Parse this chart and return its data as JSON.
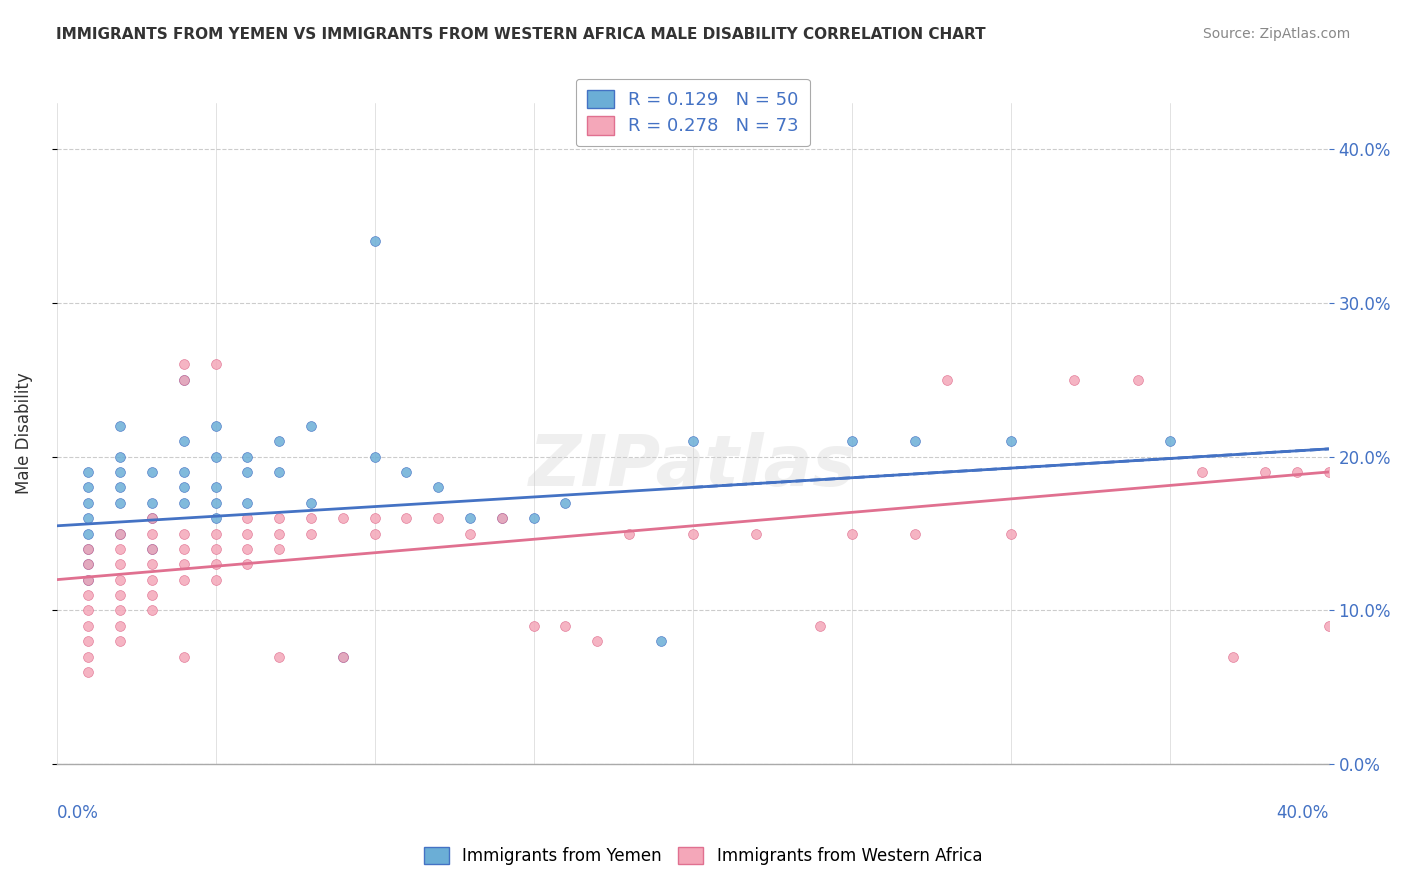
{
  "title": "IMMIGRANTS FROM YEMEN VS IMMIGRANTS FROM WESTERN AFRICA MALE DISABILITY CORRELATION CHART",
  "source": "Source: ZipAtlas.com",
  "ylabel": "Male Disability",
  "legend_r1": "R = 0.129   N = 50",
  "legend_r2": "R = 0.278   N = 73",
  "color_yemen": "#6baed6",
  "color_west_africa": "#f4a7b9",
  "color_yemen_line": "#4472c4",
  "color_west_africa_line": "#e07090",
  "xlim": [
    0.0,
    0.4
  ],
  "ylim": [
    0.0,
    0.43
  ],
  "yemen_scatter": [
    [
      0.01,
      0.19
    ],
    [
      0.01,
      0.18
    ],
    [
      0.01,
      0.17
    ],
    [
      0.01,
      0.16
    ],
    [
      0.01,
      0.15
    ],
    [
      0.01,
      0.14
    ],
    [
      0.01,
      0.13
    ],
    [
      0.01,
      0.12
    ],
    [
      0.02,
      0.2
    ],
    [
      0.02,
      0.19
    ],
    [
      0.02,
      0.18
    ],
    [
      0.02,
      0.17
    ],
    [
      0.02,
      0.15
    ],
    [
      0.02,
      0.22
    ],
    [
      0.03,
      0.19
    ],
    [
      0.03,
      0.17
    ],
    [
      0.03,
      0.16
    ],
    [
      0.03,
      0.14
    ],
    [
      0.04,
      0.25
    ],
    [
      0.04,
      0.21
    ],
    [
      0.04,
      0.19
    ],
    [
      0.04,
      0.18
    ],
    [
      0.04,
      0.17
    ],
    [
      0.05,
      0.22
    ],
    [
      0.05,
      0.2
    ],
    [
      0.05,
      0.18
    ],
    [
      0.05,
      0.17
    ],
    [
      0.05,
      0.16
    ],
    [
      0.06,
      0.2
    ],
    [
      0.06,
      0.19
    ],
    [
      0.06,
      0.17
    ],
    [
      0.07,
      0.21
    ],
    [
      0.07,
      0.19
    ],
    [
      0.08,
      0.22
    ],
    [
      0.08,
      0.17
    ],
    [
      0.09,
      0.07
    ],
    [
      0.1,
      0.34
    ],
    [
      0.1,
      0.2
    ],
    [
      0.11,
      0.19
    ],
    [
      0.12,
      0.18
    ],
    [
      0.13,
      0.16
    ],
    [
      0.14,
      0.16
    ],
    [
      0.15,
      0.16
    ],
    [
      0.16,
      0.17
    ],
    [
      0.19,
      0.08
    ],
    [
      0.2,
      0.21
    ],
    [
      0.25,
      0.21
    ],
    [
      0.27,
      0.21
    ],
    [
      0.3,
      0.21
    ],
    [
      0.35,
      0.21
    ]
  ],
  "west_africa_scatter": [
    [
      0.01,
      0.14
    ],
    [
      0.01,
      0.13
    ],
    [
      0.01,
      0.12
    ],
    [
      0.01,
      0.11
    ],
    [
      0.01,
      0.1
    ],
    [
      0.01,
      0.09
    ],
    [
      0.01,
      0.08
    ],
    [
      0.01,
      0.07
    ],
    [
      0.01,
      0.06
    ],
    [
      0.02,
      0.15
    ],
    [
      0.02,
      0.14
    ],
    [
      0.02,
      0.13
    ],
    [
      0.02,
      0.12
    ],
    [
      0.02,
      0.11
    ],
    [
      0.02,
      0.1
    ],
    [
      0.02,
      0.09
    ],
    [
      0.02,
      0.08
    ],
    [
      0.03,
      0.16
    ],
    [
      0.03,
      0.15
    ],
    [
      0.03,
      0.14
    ],
    [
      0.03,
      0.13
    ],
    [
      0.03,
      0.12
    ],
    [
      0.03,
      0.11
    ],
    [
      0.03,
      0.1
    ],
    [
      0.04,
      0.26
    ],
    [
      0.04,
      0.25
    ],
    [
      0.04,
      0.15
    ],
    [
      0.04,
      0.14
    ],
    [
      0.04,
      0.13
    ],
    [
      0.04,
      0.12
    ],
    [
      0.04,
      0.07
    ],
    [
      0.05,
      0.26
    ],
    [
      0.05,
      0.15
    ],
    [
      0.05,
      0.14
    ],
    [
      0.05,
      0.13
    ],
    [
      0.05,
      0.12
    ],
    [
      0.06,
      0.16
    ],
    [
      0.06,
      0.15
    ],
    [
      0.06,
      0.14
    ],
    [
      0.06,
      0.13
    ],
    [
      0.07,
      0.16
    ],
    [
      0.07,
      0.15
    ],
    [
      0.07,
      0.14
    ],
    [
      0.07,
      0.07
    ],
    [
      0.08,
      0.16
    ],
    [
      0.08,
      0.15
    ],
    [
      0.09,
      0.16
    ],
    [
      0.09,
      0.07
    ],
    [
      0.1,
      0.16
    ],
    [
      0.1,
      0.15
    ],
    [
      0.11,
      0.16
    ],
    [
      0.12,
      0.16
    ],
    [
      0.13,
      0.15
    ],
    [
      0.14,
      0.16
    ],
    [
      0.15,
      0.09
    ],
    [
      0.16,
      0.09
    ],
    [
      0.17,
      0.08
    ],
    [
      0.18,
      0.15
    ],
    [
      0.2,
      0.15
    ],
    [
      0.22,
      0.15
    ],
    [
      0.24,
      0.09
    ],
    [
      0.25,
      0.15
    ],
    [
      0.27,
      0.15
    ],
    [
      0.28,
      0.25
    ],
    [
      0.3,
      0.15
    ],
    [
      0.32,
      0.25
    ],
    [
      0.34,
      0.25
    ],
    [
      0.36,
      0.19
    ],
    [
      0.37,
      0.07
    ],
    [
      0.38,
      0.19
    ],
    [
      0.39,
      0.19
    ],
    [
      0.4,
      0.19
    ],
    [
      0.4,
      0.09
    ]
  ],
  "yemen_line": [
    [
      0.0,
      0.155
    ],
    [
      0.4,
      0.205
    ]
  ],
  "west_africa_line": [
    [
      0.0,
      0.12
    ],
    [
      0.4,
      0.19
    ]
  ]
}
